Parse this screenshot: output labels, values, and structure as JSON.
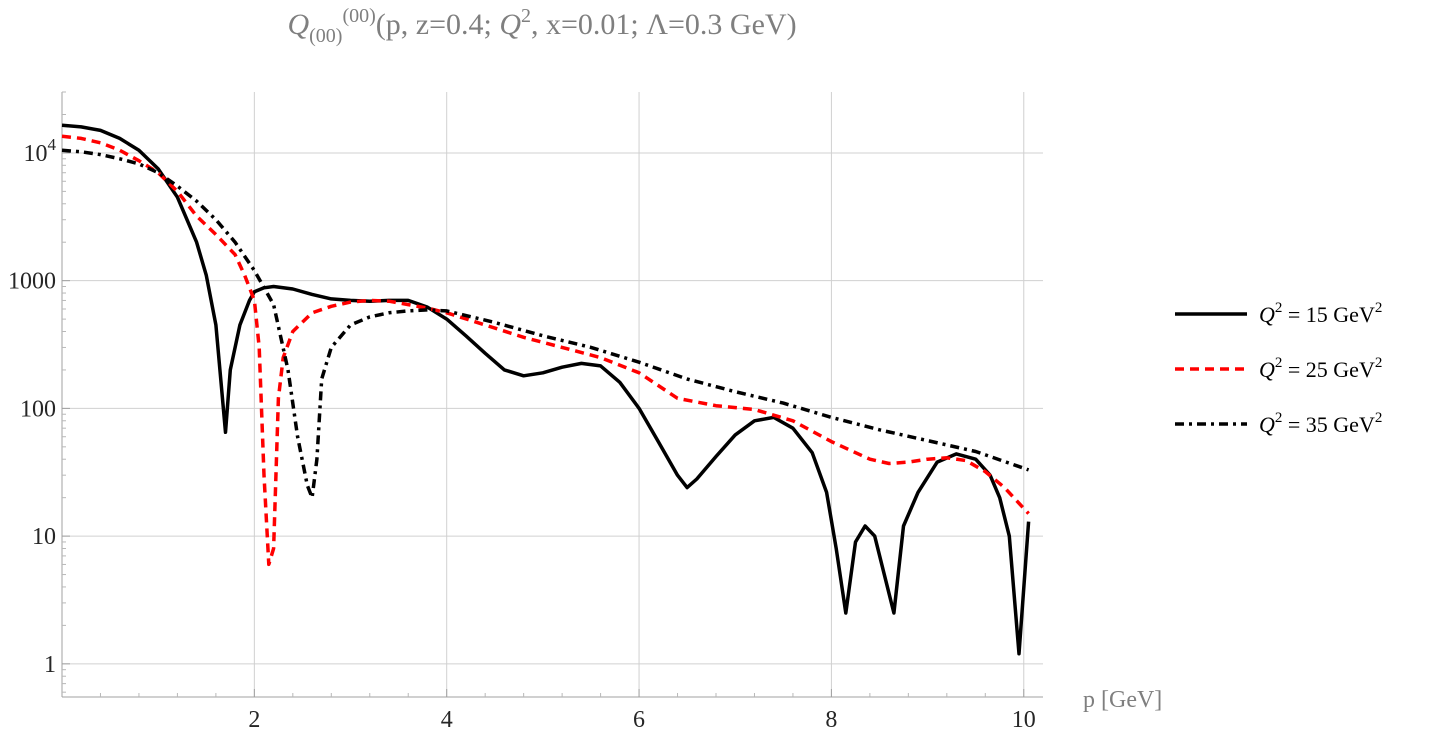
{
  "chart_data": {
    "type": "line",
    "title": {
      "q_main": "Q",
      "q_sub": "(00)",
      "q_sup": "(00)",
      "args_a": "(p, z=0.4; ",
      "q2_main": "Q",
      "q2_sup": "2",
      "args_b": ", x=0.01; Λ=0.3 GeV)"
    },
    "xlabel": "p [GeV]",
    "ylabel": "",
    "xlim": [
      0,
      10.2
    ],
    "ylim": [
      0.55,
      30000
    ],
    "yscale": "log",
    "grid": true,
    "legend_position": "right",
    "x_ticks": [
      {
        "value": 2,
        "label": "2"
      },
      {
        "value": 4,
        "label": "4"
      },
      {
        "value": 6,
        "label": "6"
      },
      {
        "value": 8,
        "label": "8"
      },
      {
        "value": 10,
        "label": "10"
      }
    ],
    "y_ticks": [
      {
        "value": 1,
        "label": "1"
      },
      {
        "value": 10,
        "label": "10"
      },
      {
        "value": 100,
        "label": "100"
      },
      {
        "value": 1000,
        "label": "1000"
      },
      {
        "value": 10000,
        "label_base": "10",
        "label_exp": "4"
      }
    ],
    "series": [
      {
        "name": "Q2 = 15 GeV2",
        "legend": {
          "q": "Q",
          "sup": "2",
          "mid": " = 15 GeV",
          "unit_sup": "2"
        },
        "color": "#000000",
        "style": "solid",
        "x": [
          0,
          0.2,
          0.4,
          0.6,
          0.8,
          1.0,
          1.2,
          1.4,
          1.5,
          1.6,
          1.7,
          1.75,
          1.85,
          1.95,
          2.0,
          2.1,
          2.2,
          2.4,
          2.6,
          2.8,
          3.0,
          3.2,
          3.4,
          3.6,
          3.8,
          4.0,
          4.2,
          4.4,
          4.6,
          4.8,
          5.0,
          5.2,
          5.4,
          5.6,
          5.8,
          6.0,
          6.2,
          6.4,
          6.5,
          6.6,
          6.8,
          7.0,
          7.2,
          7.4,
          7.6,
          7.8,
          7.95,
          8.05,
          8.15,
          8.25,
          8.35,
          8.45,
          8.55,
          8.65,
          8.75,
          8.9,
          9.1,
          9.3,
          9.5,
          9.65,
          9.75,
          9.85,
          9.95,
          10.05
        ],
        "y": [
          16500,
          16000,
          15000,
          13000,
          10500,
          7500,
          4500,
          2000,
          1100,
          450,
          65,
          200,
          450,
          700,
          820,
          880,
          900,
          860,
          780,
          720,
          700,
          690,
          700,
          700,
          620,
          500,
          370,
          270,
          200,
          180,
          190,
          210,
          225,
          215,
          160,
          100,
          55,
          30,
          24,
          28,
          42,
          62,
          80,
          85,
          70,
          45,
          22,
          8,
          2.5,
          9,
          12,
          10,
          5,
          2.5,
          12,
          22,
          38,
          44,
          40,
          30,
          20,
          10,
          1.2,
          13
        ]
      },
      {
        "name": "Q2 = 25 GeV2",
        "legend": {
          "q": "Q",
          "sup": "2",
          "mid": " = 25 GeV",
          "unit_sup": "2"
        },
        "color": "#ff0000",
        "style": "dashed",
        "x": [
          0,
          0.2,
          0.4,
          0.6,
          0.8,
          1.0,
          1.2,
          1.4,
          1.6,
          1.8,
          1.9,
          2.0,
          2.05,
          2.1,
          2.15,
          2.2,
          2.25,
          2.3,
          2.4,
          2.6,
          2.8,
          3.0,
          3.2,
          3.4,
          3.6,
          3.8,
          4.0,
          4.4,
          4.8,
          5.2,
          5.6,
          6.0,
          6.4,
          6.8,
          7.2,
          7.6,
          8.0,
          8.4,
          8.6,
          8.8,
          9.0,
          9.2,
          9.4,
          9.6,
          9.8,
          10.05
        ],
        "y": [
          13500,
          13000,
          12000,
          10500,
          8700,
          7000,
          5000,
          3200,
          2300,
          1600,
          1100,
          700,
          300,
          30,
          6,
          8,
          120,
          250,
          400,
          560,
          630,
          680,
          700,
          690,
          650,
          610,
          560,
          450,
          360,
          300,
          250,
          190,
          120,
          105,
          98,
          80,
          55,
          40,
          37,
          38,
          40,
          41,
          39,
          32,
          24,
          15
        ]
      },
      {
        "name": "Q2 = 35 GeV2",
        "legend": {
          "q": "Q",
          "sup": "2",
          "mid": " = 35 GeV",
          "unit_sup": "2"
        },
        "color": "#000000",
        "style": "dashdot",
        "x": [
          0,
          0.2,
          0.4,
          0.6,
          0.8,
          1.0,
          1.2,
          1.4,
          1.6,
          1.8,
          2.0,
          2.2,
          2.35,
          2.45,
          2.55,
          2.6,
          2.65,
          2.7,
          2.8,
          3.0,
          3.2,
          3.4,
          3.6,
          3.8,
          4.0,
          4.5,
          5.0,
          5.5,
          6.0,
          6.5,
          7.0,
          7.5,
          8.0,
          8.5,
          9.0,
          9.5,
          10.05
        ],
        "y": [
          10500,
          10200,
          9700,
          9000,
          8200,
          7000,
          5500,
          4200,
          3000,
          2000,
          1200,
          650,
          200,
          60,
          25,
          20,
          40,
          170,
          300,
          450,
          520,
          560,
          580,
          590,
          580,
          470,
          370,
          300,
          230,
          170,
          135,
          110,
          85,
          68,
          56,
          46,
          33
        ]
      }
    ]
  }
}
